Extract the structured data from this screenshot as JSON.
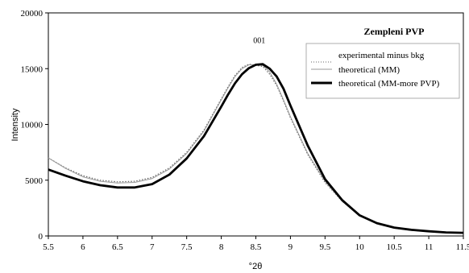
{
  "chart_data": {
    "type": "line",
    "title": "",
    "xlabel": "°2θ",
    "ylabel": "Intensity",
    "xlim": [
      5.5,
      11.5
    ],
    "ylim": [
      0,
      20000
    ],
    "xticks": [
      "5.5",
      "6",
      "6.5",
      "7",
      "7.5",
      "8",
      "8.5",
      "9",
      "9.5",
      "10",
      "10.5",
      "11",
      "11.5"
    ],
    "yticks": [
      "0",
      "5000",
      "10000",
      "15000",
      "20000"
    ],
    "grid": false,
    "legend": {
      "title": "Zempleni PVP",
      "placement": "top-right",
      "entries": [
        "experimental minus bkg",
        "theoretical (MM)",
        "theoretical (MM-more PVP)"
      ]
    },
    "annotations": [
      {
        "text": "001",
        "x": 8.55,
        "y": 17300
      }
    ],
    "series": [
      {
        "name": "experimental minus bkg",
        "color": "#666666",
        "style": "dotted",
        "x": [
          5.5,
          5.75,
          6.0,
          6.25,
          6.5,
          6.75,
          7.0,
          7.25,
          7.5,
          7.75,
          8.0,
          8.1,
          8.2,
          8.3,
          8.4,
          8.5,
          8.6,
          8.7,
          8.8,
          8.9,
          9.0,
          9.25,
          9.5,
          9.75,
          10.0,
          10.25,
          10.5,
          10.75,
          11.0,
          11.25,
          11.5
        ],
        "y": [
          7000,
          6100,
          5400,
          5000,
          4850,
          4900,
          5250,
          6100,
          7500,
          9500,
          12300,
          13400,
          14400,
          15100,
          15400,
          15300,
          15200,
          14500,
          13500,
          12100,
          10600,
          7300,
          4800,
          3100,
          1800,
          1100,
          700,
          500,
          400,
          300,
          250
        ]
      },
      {
        "name": "theoretical (MM)",
        "color": "#999999",
        "style": "thin",
        "x": [
          5.5,
          5.75,
          6.0,
          6.25,
          6.5,
          6.75,
          7.0,
          7.25,
          7.5,
          7.75,
          8.0,
          8.1,
          8.2,
          8.3,
          8.4,
          8.5,
          8.6,
          8.7,
          8.8,
          8.9,
          9.0,
          9.25,
          9.5,
          9.75,
          10.0,
          10.25,
          10.5,
          10.75,
          11.0,
          11.25,
          11.5
        ],
        "y": [
          7000,
          6050,
          5300,
          4900,
          4750,
          4800,
          5150,
          6000,
          7400,
          9400,
          12200,
          13300,
          14300,
          15000,
          15350,
          15350,
          15300,
          14700,
          13600,
          12200,
          10700,
          7400,
          4900,
          3100,
          1800,
          1100,
          700,
          500,
          400,
          300,
          250
        ]
      },
      {
        "name": "theoretical (MM-more PVP)",
        "color": "#000000",
        "style": "thick",
        "x": [
          5.5,
          5.75,
          6.0,
          6.25,
          6.5,
          6.75,
          7.0,
          7.25,
          7.5,
          7.75,
          8.0,
          8.1,
          8.2,
          8.3,
          8.4,
          8.5,
          8.6,
          8.7,
          8.8,
          8.9,
          9.0,
          9.25,
          9.5,
          9.75,
          10.0,
          10.25,
          10.5,
          10.75,
          11.0,
          11.25,
          11.5
        ],
        "y": [
          5950,
          5400,
          4900,
          4550,
          4350,
          4350,
          4650,
          5500,
          6950,
          8950,
          11600,
          12700,
          13700,
          14500,
          15050,
          15350,
          15400,
          15000,
          14300,
          13200,
          11700,
          8100,
          5100,
          3200,
          1850,
          1150,
          750,
          550,
          420,
          320,
          280
        ]
      }
    ]
  }
}
